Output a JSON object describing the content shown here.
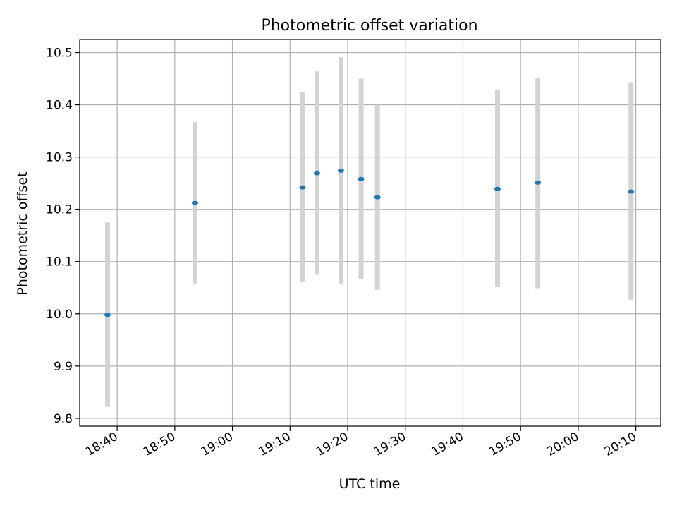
{
  "chart_data": {
    "type": "scatter",
    "title": "Photometric offset variation",
    "xlabel": "UTC time",
    "ylabel": "Photometric offset",
    "x_unit": "time of day (HH:MM)",
    "xlim": [
      "18:33:30",
      "20:14:20"
    ],
    "ylim": [
      9.785,
      10.525
    ],
    "x_ticks": [
      "18:40",
      "18:50",
      "19:00",
      "19:10",
      "19:20",
      "19:30",
      "19:40",
      "19:50",
      "20:00",
      "20:10"
    ],
    "y_ticks": [
      9.8,
      9.9,
      10.0,
      10.1,
      10.2,
      10.3,
      10.4,
      10.5
    ],
    "y_tick_labels": [
      "9.8",
      "9.9",
      "10.0",
      "10.1",
      "10.2",
      "10.3",
      "10.4",
      "10.5"
    ],
    "grid": true,
    "series": [
      {
        "points": [
          {
            "x": "18:38:20",
            "y": 9.998,
            "y_low": 9.822,
            "y_high": 10.175
          },
          {
            "x": "18:53:30",
            "y": 10.212,
            "y_low": 10.058,
            "y_high": 10.367
          },
          {
            "x": "19:12:10",
            "y": 10.242,
            "y_low": 10.061,
            "y_high": 10.425
          },
          {
            "x": "19:14:40",
            "y": 10.269,
            "y_low": 10.075,
            "y_high": 10.464
          },
          {
            "x": "19:18:50",
            "y": 10.274,
            "y_low": 10.058,
            "y_high": 10.491
          },
          {
            "x": "19:22:20",
            "y": 10.258,
            "y_low": 10.067,
            "y_high": 10.45
          },
          {
            "x": "19:25:10",
            "y": 10.223,
            "y_low": 10.046,
            "y_high": 10.4
          },
          {
            "x": "19:46:00",
            "y": 10.239,
            "y_low": 10.051,
            "y_high": 10.429
          },
          {
            "x": "19:53:00",
            "y": 10.251,
            "y_low": 10.049,
            "y_high": 10.452
          },
          {
            "x": "20:09:10",
            "y": 10.234,
            "y_low": 10.027,
            "y_high": 10.443
          }
        ]
      }
    ],
    "colors": {
      "point": "#1f77b4",
      "errorbar": "#d3d3d3",
      "grid": "#b0b0b0",
      "axes": "#000000"
    }
  }
}
